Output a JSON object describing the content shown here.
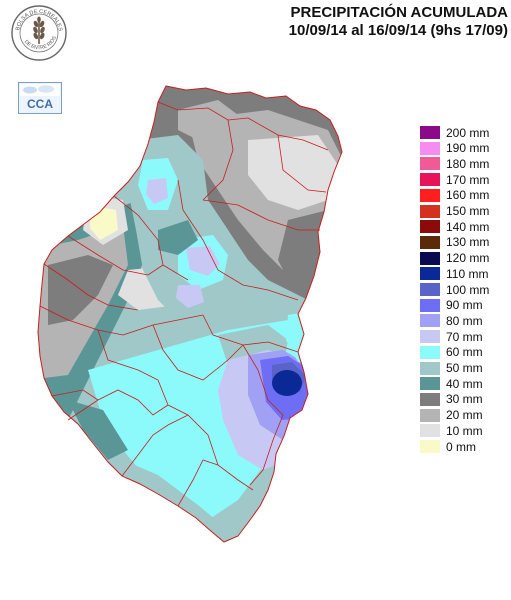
{
  "header": {
    "title": "PRECIPITACIÓN ACUMULADA",
    "period": "10/09/14 al 16/09/14 (9hs 17/09)"
  },
  "logos": {
    "seal_text": "BOLSA DE CEREALES DE ENTRE RIOS",
    "cca_text": "CCA"
  },
  "legend": {
    "items": [
      {
        "label": "200 mm",
        "color": "#8a0a8a"
      },
      {
        "label": "190 mm",
        "color": "#f58cf0"
      },
      {
        "label": "180 mm",
        "color": "#f05a96"
      },
      {
        "label": "170 mm",
        "color": "#e8145a"
      },
      {
        "label": "160 mm",
        "color": "#ff1e1e"
      },
      {
        "label": "150 mm",
        "color": "#d2321e"
      },
      {
        "label": "140 mm",
        "color": "#8c0a0a"
      },
      {
        "label": "130 mm",
        "color": "#5a2a0a"
      },
      {
        "label": "120 mm",
        "color": "#0a0a50"
      },
      {
        "label": "110 mm",
        "color": "#0a2896"
      },
      {
        "label": "100 mm",
        "color": "#5a64c8"
      },
      {
        "label": "90 mm",
        "color": "#6e6ef5"
      },
      {
        "label": "80 mm",
        "color": "#a0a0f5"
      },
      {
        "label": "70 mm",
        "color": "#c8c8f5"
      },
      {
        "label": "60 mm",
        "color": "#8cfafa"
      },
      {
        "label": "50 mm",
        "color": "#a0c8c8"
      },
      {
        "label": "40 mm",
        "color": "#5a9696"
      },
      {
        "label": "30 mm",
        "color": "#7d7d7d"
      },
      {
        "label": "20 mm",
        "color": "#b4b4b4"
      },
      {
        "label": "10 mm",
        "color": "#e1e1e1"
      },
      {
        "label": "0 mm",
        "color": "#fafac8"
      }
    ]
  }
}
